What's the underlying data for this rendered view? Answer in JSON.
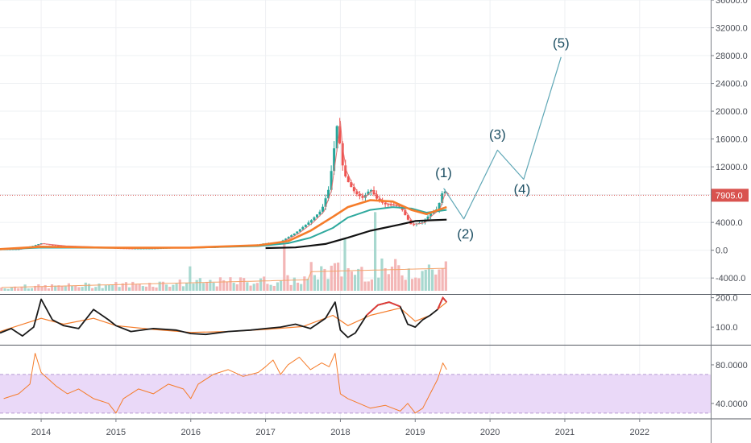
{
  "colors": {
    "background": "#ffffff",
    "grid": "#eef0f3",
    "axis_line": "#7a7e86",
    "axis_text": "#4a4e56",
    "candle_up": "#26a69a",
    "candle_down": "#ef5350",
    "ma_orange": "#f57c2a",
    "ma_teal": "#2fa99e",
    "ma_black": "#111111",
    "ma_red_thin": "#e57373",
    "wave_line": "#5fa7b6",
    "wave_label": "#1d4f63",
    "current_price_line": "#d9534f",
    "current_price_badge": "#d9534f",
    "osc_line": "#1a1a1a",
    "osc_line_hot": "#e53935",
    "osc_signal": "#f57c2a",
    "rsi_line": "#f57c2a",
    "rsi_band": "#ead9f8",
    "rsi_band_border": "#b79bd3",
    "volume_up": "#a8d8cf",
    "volume_down": "#f3b6b6",
    "volume_ma": "#f4a36b"
  },
  "current_price_label": "7905.0",
  "chart_data": [
    {
      "type": "line",
      "title": "",
      "xlabel": "",
      "ylabel": "",
      "x_ticks": [
        "2014",
        "2015",
        "2016",
        "2017",
        "2018",
        "2019",
        "2020",
        "2021",
        "2022"
      ],
      "x_tick_years": [
        2014,
        2015,
        2016,
        2017,
        2018,
        2019,
        2020,
        2021,
        2022
      ],
      "xlim": [
        2013.45,
        2022.95
      ],
      "y_ticks": [
        "36000.0",
        "32000.0",
        "28000.0",
        "24000.0",
        "20000.0",
        "16000.0",
        "12000.0",
        "8000.0",
        "4000.0",
        "0.0",
        "-4000.0"
      ],
      "ylim": [
        -6300,
        36000
      ],
      "current_price": 7905.0,
      "series": [
        {
          "role": "price",
          "x": [
            2013.45,
            2013.7,
            2013.9,
            2014.0,
            2014.1,
            2014.3,
            2014.6,
            2014.9,
            2015.0,
            2015.2,
            2015.5,
            2015.8,
            2016.0,
            2016.3,
            2016.6,
            2016.9,
            2017.0,
            2017.2,
            2017.4,
            2017.6,
            2017.75,
            2017.85,
            2017.92,
            2017.97,
            2018.0,
            2018.05,
            2018.12,
            2018.2,
            2018.3,
            2018.4,
            2018.5,
            2018.6,
            2018.7,
            2018.8,
            2018.88,
            2018.95,
            2019.0,
            2019.1,
            2019.2,
            2019.3,
            2019.38,
            2019.42
          ],
          "y": [
            120,
            150,
            650,
            1000,
            800,
            600,
            500,
            380,
            300,
            250,
            260,
            380,
            430,
            420,
            650,
            800,
            1000,
            1200,
            2500,
            4200,
            5800,
            9000,
            15000,
            19200,
            14000,
            11000,
            9500,
            8200,
            7500,
            8800,
            7200,
            6600,
            6500,
            6300,
            4800,
            3600,
            3800,
            4000,
            5200,
            6000,
            8900,
            7900
          ]
        },
        {
          "role": "ma-orange",
          "x": [
            2013.45,
            2014.0,
            2015.0,
            2016.0,
            2016.9,
            2017.3,
            2017.6,
            2017.9,
            2018.1,
            2018.4,
            2018.7,
            2018.95,
            2019.15,
            2019.42
          ],
          "y": [
            150,
            500,
            350,
            380,
            700,
            1300,
            2800,
            4800,
            6200,
            7200,
            7000,
            5800,
            5200,
            6200
          ]
        },
        {
          "role": "ma-teal",
          "x": [
            2013.45,
            2014.0,
            2015.0,
            2016.0,
            2016.9,
            2017.3,
            2017.6,
            2017.9,
            2018.1,
            2018.4,
            2018.7,
            2018.95,
            2019.15,
            2019.42
          ],
          "y": [
            120,
            380,
            350,
            360,
            600,
            1000,
            1800,
            3200,
            4700,
            5800,
            6200,
            6000,
            5400,
            5800
          ]
        },
        {
          "role": "ma-black",
          "x": [
            2017.0,
            2017.4,
            2017.8,
            2018.1,
            2018.4,
            2018.8,
            2019.0,
            2019.2,
            2019.42
          ],
          "y": [
            300,
            400,
            900,
            1800,
            2800,
            3700,
            4200,
            4300,
            4400
          ]
        },
        {
          "role": "wave-projection",
          "x": [
            2019.38,
            2019.65,
            2020.1,
            2020.45,
            2020.95
          ],
          "y": [
            8900,
            4500,
            14400,
            10200,
            27800
          ]
        }
      ],
      "annotations": [
        "(1)",
        "(2)",
        "(3)",
        "(4)",
        "(5)"
      ]
    },
    {
      "type": "line",
      "title": "",
      "y_ticks": [
        "200.0",
        "100.0"
      ],
      "ylim": [
        40,
        210
      ],
      "series": [
        {
          "role": "oscillator",
          "x": [
            2013.45,
            2013.6,
            2013.75,
            2013.9,
            2014.0,
            2014.15,
            2014.3,
            2014.5,
            2014.7,
            2014.9,
            2015.0,
            2015.2,
            2015.5,
            2015.8,
            2016.0,
            2016.2,
            2016.5,
            2016.8,
            2017.0,
            2017.2,
            2017.4,
            2017.6,
            2017.8,
            2017.93,
            2018.0,
            2018.1,
            2018.2,
            2018.35,
            2018.5,
            2018.65,
            2018.8,
            2018.9,
            2019.0,
            2019.1,
            2019.2,
            2019.3,
            2019.37,
            2019.42
          ],
          "y": [
            80,
            95,
            70,
            100,
            195,
            125,
            105,
            95,
            160,
            125,
            105,
            85,
            95,
            90,
            78,
            75,
            85,
            90,
            95,
            100,
            110,
            95,
            130,
            185,
            90,
            65,
            80,
            140,
            175,
            185,
            170,
            110,
            100,
            125,
            140,
            160,
            200,
            185
          ]
        },
        {
          "role": "signal",
          "x": [
            2013.45,
            2014.0,
            2014.3,
            2014.7,
            2015.0,
            2015.5,
            2016.0,
            2016.5,
            2017.0,
            2017.5,
            2017.9,
            2018.1,
            2018.4,
            2018.8,
            2019.0,
            2019.2,
            2019.42
          ],
          "y": [
            85,
            130,
            110,
            130,
            105,
            92,
            82,
            85,
            92,
            102,
            140,
            105,
            140,
            165,
            120,
            140,
            185
          ]
        }
      ]
    },
    {
      "type": "line",
      "title": "",
      "y_ticks": [
        "80.0000",
        "40.0000"
      ],
      "ylim": [
        24,
        100
      ],
      "band": [
        30,
        70
      ],
      "series": [
        {
          "role": "rsi",
          "x": [
            2013.5,
            2013.7,
            2013.85,
            2013.92,
            2014.0,
            2014.1,
            2014.2,
            2014.35,
            2014.5,
            2014.7,
            2014.9,
            2015.0,
            2015.1,
            2015.3,
            2015.5,
            2015.7,
            2015.9,
            2016.0,
            2016.1,
            2016.3,
            2016.5,
            2016.7,
            2016.9,
            2017.0,
            2017.1,
            2017.2,
            2017.3,
            2017.45,
            2017.6,
            2017.75,
            2017.85,
            2017.93,
            2018.0,
            2018.1,
            2018.25,
            2018.4,
            2018.6,
            2018.8,
            2018.9,
            2019.0,
            2019.1,
            2019.2,
            2019.3,
            2019.37,
            2019.42
          ],
          "y": [
            45,
            50,
            60,
            92,
            72,
            65,
            58,
            50,
            55,
            45,
            40,
            30,
            45,
            55,
            50,
            60,
            55,
            45,
            60,
            70,
            75,
            68,
            72,
            78,
            85,
            70,
            80,
            88,
            75,
            82,
            78,
            92,
            50,
            45,
            40,
            35,
            38,
            32,
            40,
            30,
            35,
            50,
            65,
            82,
            75
          ]
        }
      ]
    }
  ]
}
